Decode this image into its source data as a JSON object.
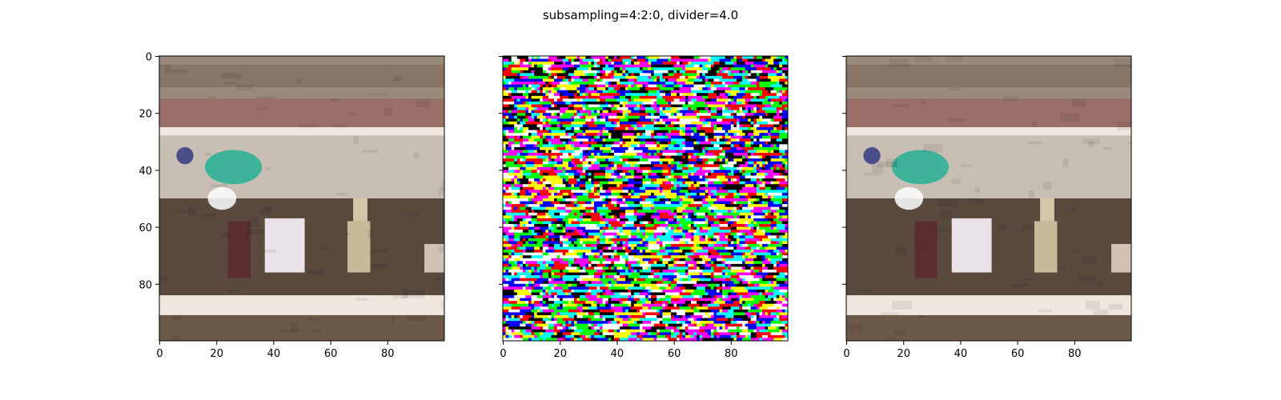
{
  "figure": {
    "suptitle": "subsampling=4:2:0, divider=4.0"
  },
  "chart_data": [
    {
      "type": "heatmap",
      "panel": "left",
      "image_size": [
        100,
        100
      ],
      "title": "",
      "xlabel": "",
      "ylabel": "",
      "xlim": [
        0,
        100
      ],
      "ylim": [
        100,
        0
      ],
      "x_ticks": [
        0,
        20,
        40,
        60,
        80
      ],
      "y_ticks": [
        0,
        20,
        40,
        60,
        80
      ],
      "x_tick_labels": [
        "0",
        "20",
        "40",
        "60",
        "80"
      ],
      "y_tick_labels": [
        "0",
        "20",
        "40",
        "60",
        "80"
      ],
      "content": "photo",
      "colors": {
        "background": "#8c7a68",
        "stripe": "#efe6de",
        "road": "#5a4a3e",
        "jersey": "#3fb39a",
        "cart": "#e9e2e8"
      }
    },
    {
      "type": "heatmap",
      "panel": "center",
      "image_size": [
        100,
        100
      ],
      "title": "",
      "xlabel": "",
      "ylabel": "",
      "xlim": [
        0,
        100
      ],
      "ylim": [
        100,
        0
      ],
      "x_ticks": [
        0,
        20,
        40,
        60,
        80
      ],
      "y_ticks": [
        0,
        20,
        40,
        60,
        80
      ],
      "x_tick_labels": [
        "0",
        "20",
        "40",
        "60",
        "80"
      ],
      "y_tick_labels": [],
      "content": "noise",
      "colors": {
        "palette": [
          "#ff0000",
          "#00ff00",
          "#0000ff",
          "#ffff00",
          "#ff00ff",
          "#00ffff",
          "#000000",
          "#ffffff"
        ]
      }
    },
    {
      "type": "heatmap",
      "panel": "right",
      "image_size": [
        100,
        100
      ],
      "title": "",
      "xlabel": "",
      "ylabel": "",
      "xlim": [
        0,
        100
      ],
      "ylim": [
        100,
        0
      ],
      "x_ticks": [
        0,
        20,
        40,
        60,
        80
      ],
      "y_ticks": [
        0,
        20,
        40,
        60,
        80
      ],
      "x_tick_labels": [
        "0",
        "20",
        "40",
        "60",
        "80"
      ],
      "y_tick_labels": [],
      "content": "photo",
      "colors": {
        "background": "#8c7a68",
        "stripe": "#efe6de",
        "road": "#5a4a3e",
        "jersey": "#3fb39a",
        "cart": "#e9e2e8"
      }
    }
  ]
}
